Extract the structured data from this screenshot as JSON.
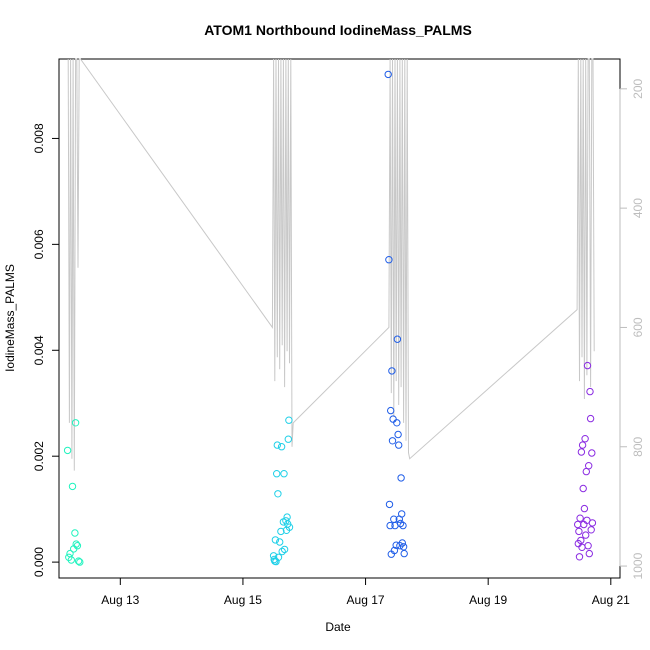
{
  "chart_data": {
    "type": "scatter",
    "title": "ATOM1 Northbound IodineMass_PALMS",
    "xlabel": "Date",
    "ylabel": "IodineMass_PALMS",
    "xlim": [
      12.0,
      21.15
    ],
    "ylim": [
      -0.0003,
      0.0095
    ],
    "x_ticks": [
      {
        "value": 13,
        "label": "Aug 13"
      },
      {
        "value": 15,
        "label": "Aug 15"
      },
      {
        "value": 17,
        "label": "Aug 17"
      },
      {
        "value": 19,
        "label": "Aug 19"
      },
      {
        "value": 21,
        "label": "Aug 21"
      }
    ],
    "y_ticks": [
      {
        "value": 0,
        "label": "0.000"
      },
      {
        "value": 0.002,
        "label": "0.002"
      },
      {
        "value": 0.004,
        "label": "0.004"
      },
      {
        "value": 0.006,
        "label": "0.006"
      },
      {
        "value": 0.008,
        "label": "0.008"
      }
    ],
    "right_axis": {
      "description": "secondary axis (gray, inverted) for the flight-altitude trace",
      "ylim": [
        1020,
        150
      ],
      "ticks": [
        {
          "value": 200,
          "label": "200"
        },
        {
          "value": 400,
          "label": "400"
        },
        {
          "value": 600,
          "label": "600"
        },
        {
          "value": 800,
          "label": "800"
        },
        {
          "value": 1000,
          "label": "1000"
        }
      ]
    },
    "secondary_series": {
      "name": "altitude trace",
      "color": "#c8c8c8",
      "x": [
        12.15,
        12.17,
        12.19,
        12.21,
        12.23,
        12.25,
        12.27,
        12.29,
        12.31,
        12.33,
        12.35,
        15.48,
        15.5,
        15.52,
        15.54,
        15.56,
        15.58,
        15.6,
        15.62,
        15.64,
        15.66,
        15.68,
        15.7,
        15.72,
        15.74,
        15.76,
        15.78,
        15.8,
        15.82,
        17.38,
        17.4,
        17.42,
        17.44,
        17.46,
        17.48,
        17.5,
        17.52,
        17.54,
        17.56,
        17.58,
        17.6,
        17.62,
        17.64,
        17.66,
        17.68,
        17.7,
        17.72,
        20.45,
        20.47,
        20.49,
        20.51,
        20.53,
        20.55,
        20.57,
        20.59,
        20.61,
        20.63,
        20.65,
        20.67,
        20.69,
        20.71,
        20.73
      ],
      "y": [
        150,
        760,
        150,
        820,
        150,
        840,
        150,
        150,
        500,
        150,
        150,
        600,
        150,
        690,
        150,
        650,
        150,
        670,
        150,
        630,
        150,
        700,
        150,
        640,
        150,
        660,
        150,
        800,
        760,
        600,
        150,
        710,
        150,
        750,
        150,
        690,
        150,
        730,
        150,
        700,
        150,
        760,
        150,
        790,
        150,
        810,
        820,
        570,
        150,
        690,
        150,
        650,
        150,
        720,
        150,
        680,
        150,
        150,
        700,
        150,
        150,
        640
      ]
    },
    "series": [
      {
        "name": "IodineMass_PALMS",
        "points": [
          {
            "x": 12.14,
            "y": 0.00211,
            "color": "#21f3bf"
          },
          {
            "x": 12.16,
            "y": 9e-05,
            "color": "#21f3bf"
          },
          {
            "x": 12.18,
            "y": 0.00016,
            "color": "#21f3bf"
          },
          {
            "x": 12.2,
            "y": 4e-05,
            "color": "#21f3bf"
          },
          {
            "x": 12.22,
            "y": 0.00143,
            "color": "#21f3bf"
          },
          {
            "x": 12.24,
            "y": 0.00025,
            "color": "#21f3bf"
          },
          {
            "x": 12.26,
            "y": 0.00055,
            "color": "#21f3bf"
          },
          {
            "x": 12.27,
            "y": 0.00263,
            "color": "#21f3bf"
          },
          {
            "x": 12.28,
            "y": 0.00034,
            "color": "#21f3bf"
          },
          {
            "x": 12.3,
            "y": 0.00031,
            "color": "#21f3bf"
          },
          {
            "x": 12.32,
            "y": 2e-05,
            "color": "#21f3bf"
          },
          {
            "x": 12.34,
            "y": 0.0,
            "color": "#21f3bf"
          },
          {
            "x": 15.5,
            "y": 0.00012,
            "color": "#1fd0e8"
          },
          {
            "x": 15.51,
            "y": 5e-05,
            "color": "#1fd0e8"
          },
          {
            "x": 15.52,
            "y": 2e-05,
            "color": "#1fd0e8"
          },
          {
            "x": 15.53,
            "y": 0.00042,
            "color": "#1fd0e8"
          },
          {
            "x": 15.54,
            "y": 1e-05,
            "color": "#1fd0e8"
          },
          {
            "x": 15.55,
            "y": 0.00167,
            "color": "#1fd0e8"
          },
          {
            "x": 15.56,
            "y": 0.00221,
            "color": "#1fd0e8"
          },
          {
            "x": 15.57,
            "y": 0.00129,
            "color": "#1fd0e8"
          },
          {
            "x": 15.58,
            "y": 9e-05,
            "color": "#1fd0e8"
          },
          {
            "x": 15.6,
            "y": 0.00038,
            "color": "#1fd0e8"
          },
          {
            "x": 15.62,
            "y": 0.00058,
            "color": "#1fd0e8"
          },
          {
            "x": 15.63,
            "y": 0.00218,
            "color": "#1fd0e8"
          },
          {
            "x": 15.64,
            "y": 0.0002,
            "color": "#1fd0e8"
          },
          {
            "x": 15.66,
            "y": 0.00076,
            "color": "#1fd0e8"
          },
          {
            "x": 15.67,
            "y": 0.00167,
            "color": "#1fd0e8"
          },
          {
            "x": 15.68,
            "y": 0.00024,
            "color": "#1fd0e8"
          },
          {
            "x": 15.7,
            "y": 0.00078,
            "color": "#1fd0e8"
          },
          {
            "x": 15.71,
            "y": 0.0006,
            "color": "#1fd0e8"
          },
          {
            "x": 15.72,
            "y": 0.00085,
            "color": "#1fd0e8"
          },
          {
            "x": 15.73,
            "y": 0.00072,
            "color": "#1fd0e8"
          },
          {
            "x": 15.74,
            "y": 0.00232,
            "color": "#1fd0e8"
          },
          {
            "x": 15.75,
            "y": 0.00268,
            "color": "#1fd0e8"
          },
          {
            "x": 15.76,
            "y": 0.00066,
            "color": "#1fd0e8"
          },
          {
            "x": 17.37,
            "y": 0.00921,
            "color": "#1f5de8"
          },
          {
            "x": 17.38,
            "y": 0.00571,
            "color": "#1f5de8"
          },
          {
            "x": 17.39,
            "y": 0.00109,
            "color": "#1f5de8"
          },
          {
            "x": 17.4,
            "y": 0.00069,
            "color": "#1f5de8"
          },
          {
            "x": 17.41,
            "y": 0.00286,
            "color": "#1f5de8"
          },
          {
            "x": 17.42,
            "y": 0.00015,
            "color": "#1f5de8"
          },
          {
            "x": 17.43,
            "y": 0.00361,
            "color": "#1f5de8"
          },
          {
            "x": 17.44,
            "y": 0.00229,
            "color": "#1f5de8"
          },
          {
            "x": 17.45,
            "y": 0.0027,
            "color": "#1f5de8"
          },
          {
            "x": 17.46,
            "y": 0.00081,
            "color": "#1f5de8"
          },
          {
            "x": 17.47,
            "y": 0.00022,
            "color": "#1f5de8"
          },
          {
            "x": 17.48,
            "y": 0.00069,
            "color": "#1f5de8"
          },
          {
            "x": 17.5,
            "y": 0.00032,
            "color": "#1f5de8"
          },
          {
            "x": 17.51,
            "y": 0.00263,
            "color": "#1f5de8"
          },
          {
            "x": 17.52,
            "y": 0.00421,
            "color": "#1f5de8"
          },
          {
            "x": 17.53,
            "y": 0.00241,
            "color": "#1f5de8"
          },
          {
            "x": 17.54,
            "y": 0.00221,
            "color": "#1f5de8"
          },
          {
            "x": 17.55,
            "y": 0.00081,
            "color": "#1f5de8"
          },
          {
            "x": 17.56,
            "y": 0.00031,
            "color": "#1f5de8"
          },
          {
            "x": 17.57,
            "y": 0.00073,
            "color": "#1f5de8"
          },
          {
            "x": 17.58,
            "y": 0.00159,
            "color": "#1f5de8"
          },
          {
            "x": 17.59,
            "y": 0.00091,
            "color": "#1f5de8"
          },
          {
            "x": 17.6,
            "y": 0.00036,
            "color": "#1f5de8"
          },
          {
            "x": 17.61,
            "y": 0.00069,
            "color": "#1f5de8"
          },
          {
            "x": 17.62,
            "y": 0.00029,
            "color": "#1f5de8"
          },
          {
            "x": 17.63,
            "y": 0.00016,
            "color": "#1f5de8"
          },
          {
            "x": 20.46,
            "y": 0.00071,
            "color": "#8a2be2"
          },
          {
            "x": 20.47,
            "y": 0.00035,
            "color": "#8a2be2"
          },
          {
            "x": 20.48,
            "y": 0.00058,
            "color": "#8a2be2"
          },
          {
            "x": 20.49,
            "y": 0.0001,
            "color": "#8a2be2"
          },
          {
            "x": 20.5,
            "y": 0.00083,
            "color": "#8a2be2"
          },
          {
            "x": 20.51,
            "y": 0.00041,
            "color": "#8a2be2"
          },
          {
            "x": 20.52,
            "y": 0.00208,
            "color": "#8a2be2"
          },
          {
            "x": 20.53,
            "y": 0.00028,
            "color": "#8a2be2"
          },
          {
            "x": 20.54,
            "y": 0.00221,
            "color": "#8a2be2"
          },
          {
            "x": 20.55,
            "y": 0.00139,
            "color": "#8a2be2"
          },
          {
            "x": 20.56,
            "y": 0.00071,
            "color": "#8a2be2"
          },
          {
            "x": 20.57,
            "y": 0.00101,
            "color": "#8a2be2"
          },
          {
            "x": 20.58,
            "y": 0.00233,
            "color": "#8a2be2"
          },
          {
            "x": 20.59,
            "y": 0.00051,
            "color": "#8a2be2"
          },
          {
            "x": 20.6,
            "y": 0.00171,
            "color": "#8a2be2"
          },
          {
            "x": 20.61,
            "y": 0.00079,
            "color": "#8a2be2"
          },
          {
            "x": 20.62,
            "y": 0.00371,
            "color": "#8a2be2"
          },
          {
            "x": 20.63,
            "y": 0.00031,
            "color": "#8a2be2"
          },
          {
            "x": 20.64,
            "y": 0.00182,
            "color": "#8a2be2"
          },
          {
            "x": 20.65,
            "y": 0.00016,
            "color": "#8a2be2"
          },
          {
            "x": 20.66,
            "y": 0.00322,
            "color": "#8a2be2"
          },
          {
            "x": 20.67,
            "y": 0.00271,
            "color": "#8a2be2"
          },
          {
            "x": 20.68,
            "y": 0.00061,
            "color": "#8a2be2"
          },
          {
            "x": 20.69,
            "y": 0.00206,
            "color": "#8a2be2"
          },
          {
            "x": 20.7,
            "y": 0.00074,
            "color": "#8a2be2"
          }
        ]
      }
    ]
  }
}
